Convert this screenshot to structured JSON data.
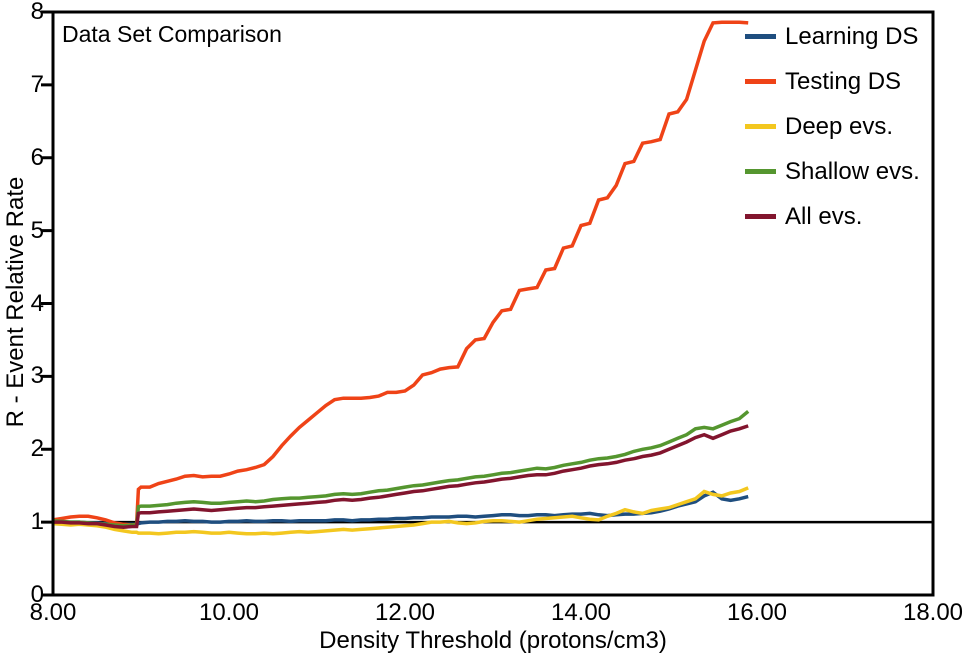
{
  "background_color": "#ffffff",
  "chart_data": {
    "type": "line",
    "title": "Data Set Comparison",
    "xlabel": "Density Threshold (protons/cm3)",
    "ylabel": "R - Event Relative Rate",
    "xlim": [
      8,
      18
    ],
    "ylim": [
      0,
      8
    ],
    "grid": false,
    "legend_position": "top-right-inside",
    "axis_color": "#000000",
    "reference_line_y": 1,
    "xticks": [
      8,
      10,
      12,
      14,
      16,
      18
    ],
    "xtick_labels": [
      "8.00",
      "10.00",
      "12.00",
      "14.00",
      "16.00",
      "18.00"
    ],
    "yticks": [
      0,
      1,
      2,
      3,
      4,
      5,
      6,
      7,
      8
    ],
    "ytick_labels": [
      "0",
      "1",
      "2",
      "3",
      "4",
      "5",
      "6",
      "7",
      "8"
    ],
    "x": [
      8.0,
      8.1,
      8.2,
      8.3,
      8.4,
      8.5,
      8.6,
      8.7,
      8.8,
      8.9,
      8.95,
      8.97,
      9.0,
      9.1,
      9.2,
      9.3,
      9.4,
      9.5,
      9.6,
      9.7,
      9.8,
      9.9,
      10.0,
      10.1,
      10.2,
      10.3,
      10.4,
      10.5,
      10.6,
      10.7,
      10.8,
      10.9,
      11.0,
      11.1,
      11.2,
      11.3,
      11.4,
      11.5,
      11.6,
      11.7,
      11.8,
      11.9,
      12.0,
      12.1,
      12.2,
      12.3,
      12.4,
      12.5,
      12.6,
      12.7,
      12.8,
      12.9,
      13.0,
      13.1,
      13.2,
      13.3,
      13.4,
      13.5,
      13.6,
      13.7,
      13.8,
      13.9,
      14.0,
      14.1,
      14.2,
      14.3,
      14.4,
      14.5,
      14.6,
      14.7,
      14.8,
      14.9,
      15.0,
      15.1,
      15.2,
      15.3,
      15.4,
      15.5,
      15.6,
      15.7,
      15.8,
      15.9
    ],
    "series": [
      {
        "name": "Learning DS",
        "color": "#1f4e7f",
        "values": [
          1.0,
          1.0,
          1.0,
          1.0,
          0.99,
          0.99,
          0.98,
          0.98,
          0.97,
          0.97,
          0.97,
          0.98,
          0.99,
          1.0,
          1.0,
          1.01,
          1.01,
          1.02,
          1.01,
          1.01,
          1.0,
          1.0,
          1.01,
          1.01,
          1.02,
          1.01,
          1.01,
          1.02,
          1.02,
          1.01,
          1.02,
          1.02,
          1.02,
          1.02,
          1.03,
          1.03,
          1.02,
          1.03,
          1.03,
          1.04,
          1.04,
          1.05,
          1.05,
          1.06,
          1.06,
          1.07,
          1.07,
          1.07,
          1.08,
          1.08,
          1.07,
          1.08,
          1.09,
          1.1,
          1.1,
          1.09,
          1.09,
          1.1,
          1.1,
          1.09,
          1.1,
          1.11,
          1.11,
          1.12,
          1.1,
          1.09,
          1.1,
          1.11,
          1.11,
          1.12,
          1.13,
          1.15,
          1.18,
          1.22,
          1.25,
          1.28,
          1.36,
          1.41,
          1.32,
          1.3,
          1.32,
          1.35
        ]
      },
      {
        "name": "Testing DS",
        "color": "#ef4317",
        "values": [
          1.03,
          1.05,
          1.07,
          1.08,
          1.08,
          1.06,
          1.03,
          0.99,
          0.97,
          0.96,
          0.97,
          1.45,
          1.48,
          1.48,
          1.53,
          1.56,
          1.59,
          1.63,
          1.64,
          1.62,
          1.63,
          1.63,
          1.66,
          1.7,
          1.72,
          1.75,
          1.79,
          1.9,
          2.05,
          2.18,
          2.3,
          2.4,
          2.5,
          2.6,
          2.68,
          2.7,
          2.7,
          2.7,
          2.71,
          2.73,
          2.78,
          2.78,
          2.8,
          2.88,
          3.02,
          3.05,
          3.1,
          3.12,
          3.13,
          3.38,
          3.5,
          3.52,
          3.74,
          3.9,
          3.92,
          4.18,
          4.2,
          4.22,
          4.46,
          4.48,
          4.76,
          4.79,
          5.07,
          5.1,
          5.42,
          5.45,
          5.62,
          5.92,
          5.95,
          6.2,
          6.22,
          6.25,
          6.6,
          6.63,
          6.8,
          7.2,
          7.6,
          7.85,
          7.86,
          7.86,
          7.86,
          7.85
        ]
      },
      {
        "name": "Deep evs.",
        "color": "#f3c71f",
        "values": [
          0.98,
          0.97,
          0.96,
          0.97,
          0.96,
          0.95,
          0.93,
          0.9,
          0.88,
          0.86,
          0.86,
          0.85,
          0.85,
          0.85,
          0.84,
          0.85,
          0.86,
          0.86,
          0.87,
          0.86,
          0.85,
          0.85,
          0.86,
          0.85,
          0.84,
          0.84,
          0.85,
          0.84,
          0.85,
          0.86,
          0.87,
          0.86,
          0.87,
          0.88,
          0.89,
          0.9,
          0.89,
          0.9,
          0.91,
          0.92,
          0.93,
          0.94,
          0.95,
          0.96,
          0.98,
          1.0,
          1.0,
          1.01,
          0.99,
          0.98,
          0.99,
          1.01,
          1.02,
          1.02,
          1.01,
          1.0,
          1.02,
          1.04,
          1.05,
          1.06,
          1.07,
          1.08,
          1.06,
          1.04,
          1.03,
          1.08,
          1.12,
          1.17,
          1.14,
          1.12,
          1.16,
          1.18,
          1.2,
          1.24,
          1.28,
          1.32,
          1.42,
          1.38,
          1.36,
          1.4,
          1.42,
          1.47
        ]
      },
      {
        "name": "Shallow evs.",
        "color": "#55962f",
        "values": [
          1.02,
          1.01,
          1.0,
          1.0,
          0.99,
          0.98,
          0.97,
          0.96,
          0.95,
          0.96,
          0.96,
          1.21,
          1.22,
          1.22,
          1.23,
          1.24,
          1.26,
          1.27,
          1.28,
          1.27,
          1.26,
          1.26,
          1.27,
          1.28,
          1.29,
          1.28,
          1.29,
          1.31,
          1.32,
          1.33,
          1.33,
          1.34,
          1.35,
          1.36,
          1.38,
          1.39,
          1.38,
          1.39,
          1.41,
          1.43,
          1.44,
          1.46,
          1.48,
          1.5,
          1.51,
          1.53,
          1.55,
          1.57,
          1.58,
          1.6,
          1.62,
          1.63,
          1.65,
          1.67,
          1.68,
          1.7,
          1.72,
          1.74,
          1.73,
          1.75,
          1.78,
          1.8,
          1.82,
          1.85,
          1.87,
          1.88,
          1.9,
          1.93,
          1.97,
          2.0,
          2.02,
          2.05,
          2.1,
          2.15,
          2.2,
          2.28,
          2.3,
          2.28,
          2.33,
          2.38,
          2.42,
          2.52
        ]
      },
      {
        "name": "All evs.",
        "color": "#82152e",
        "values": [
          1.0,
          1.0,
          0.99,
          0.99,
          0.98,
          0.98,
          0.96,
          0.94,
          0.93,
          0.94,
          0.94,
          1.12,
          1.13,
          1.13,
          1.14,
          1.15,
          1.16,
          1.17,
          1.18,
          1.17,
          1.16,
          1.17,
          1.18,
          1.19,
          1.2,
          1.2,
          1.21,
          1.22,
          1.23,
          1.24,
          1.25,
          1.26,
          1.27,
          1.28,
          1.3,
          1.31,
          1.3,
          1.31,
          1.33,
          1.34,
          1.36,
          1.38,
          1.4,
          1.42,
          1.43,
          1.45,
          1.47,
          1.49,
          1.5,
          1.52,
          1.54,
          1.55,
          1.57,
          1.59,
          1.6,
          1.62,
          1.64,
          1.65,
          1.65,
          1.67,
          1.7,
          1.72,
          1.74,
          1.77,
          1.79,
          1.8,
          1.82,
          1.85,
          1.87,
          1.9,
          1.92,
          1.95,
          2.0,
          2.05,
          2.1,
          2.16,
          2.2,
          2.15,
          2.2,
          2.25,
          2.28,
          2.32
        ]
      }
    ]
  }
}
